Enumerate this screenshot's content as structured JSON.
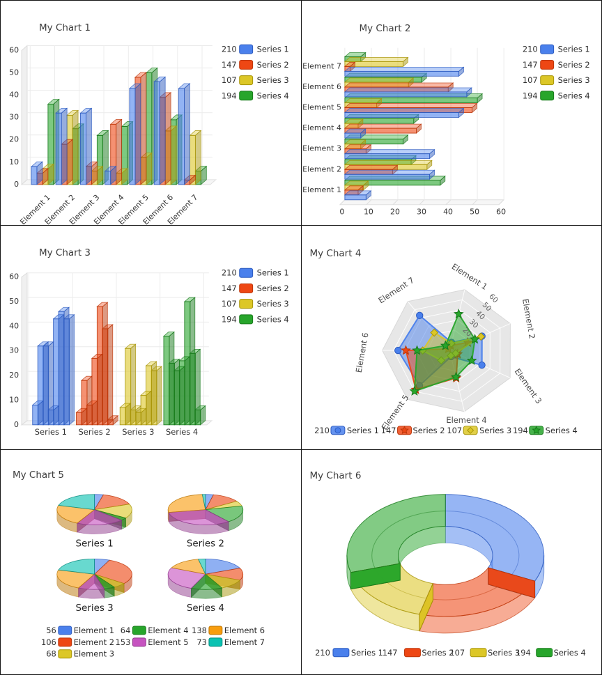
{
  "palette": {
    "series": [
      {
        "name": "Series 1",
        "color": "#4A80EC",
        "dark": "#2D5BBF"
      },
      {
        "name": "Series 2",
        "color": "#EE4714",
        "dark": "#BC3508"
      },
      {
        "name": "Series 3",
        "color": "#DCC727",
        "dark": "#A7950A"
      },
      {
        "name": "Series 4",
        "color": "#27A52B",
        "dark": "#187A1B"
      }
    ]
  },
  "chart_data": [
    {
      "type": "bar",
      "variant": "3d-column",
      "title": "My Chart 1",
      "categories": [
        "Element 1",
        "Element 2",
        "Element 3",
        "Element 4",
        "Element 5",
        "Element 6",
        "Element 7"
      ],
      "series": [
        {
          "name": "Series 1",
          "legend_value": 210,
          "color": "#4A80EC",
          "dark": "#2D5BBF",
          "values": [
            8,
            32,
            32,
            6,
            43,
            46,
            43
          ]
        },
        {
          "name": "Series 2",
          "legend_value": 147,
          "color": "#EE4714",
          "dark": "#BC3508",
          "values": [
            5,
            18,
            8,
            27,
            48,
            39,
            2
          ]
        },
        {
          "name": "Series 3",
          "legend_value": 107,
          "color": "#DCC727",
          "dark": "#A7950A",
          "values": [
            7,
            31,
            6,
            5,
            12,
            24,
            22
          ]
        },
        {
          "name": "Series 4",
          "legend_value": 194,
          "color": "#27A52B",
          "dark": "#187A1B",
          "values": [
            36,
            25,
            22,
            26,
            50,
            29,
            6
          ]
        }
      ],
      "ylim": [
        0,
        60
      ],
      "yticks": [
        0,
        10,
        20,
        30,
        40,
        50,
        60
      ],
      "legend_position": "right"
    },
    {
      "type": "bar",
      "variant": "3d-horizontal-bar",
      "title": "My Chart 2",
      "categories": [
        "Element 1",
        "Element 2",
        "Element 3",
        "Element 4",
        "Element 5",
        "Element 6",
        "Element 7"
      ],
      "series": [
        {
          "name": "Series 1",
          "legend_value": 210,
          "color": "#4A80EC",
          "dark": "#2D5BBF",
          "values": [
            8,
            32,
            32,
            6,
            43,
            46,
            43
          ]
        },
        {
          "name": "Series 2",
          "legend_value": 147,
          "color": "#EE4714",
          "dark": "#BC3508",
          "values": [
            5,
            18,
            8,
            27,
            48,
            39,
            2
          ]
        },
        {
          "name": "Series 3",
          "legend_value": 107,
          "color": "#DCC727",
          "dark": "#A7950A",
          "values": [
            7,
            31,
            6,
            5,
            12,
            24,
            22
          ]
        },
        {
          "name": "Series 4",
          "legend_value": 194,
          "color": "#27A52B",
          "dark": "#187A1B",
          "values": [
            36,
            25,
            22,
            26,
            50,
            29,
            6
          ]
        }
      ],
      "xlim": [
        0,
        60
      ],
      "xticks": [
        0,
        10,
        20,
        30,
        40,
        50,
        60
      ],
      "legend_position": "right"
    },
    {
      "type": "bar",
      "variant": "3d-column-grouped-by-series",
      "title": "My Chart 3",
      "categories": [
        "Series 1",
        "Series 2",
        "Series 3",
        "Series 4"
      ],
      "series": [
        {
          "name": "Series 1",
          "legend_value": 210,
          "color": "#4A80EC",
          "dark": "#2D5BBF",
          "values": [
            8,
            32,
            32,
            6,
            43,
            46,
            43
          ]
        },
        {
          "name": "Series 2",
          "legend_value": 147,
          "color": "#EE4714",
          "dark": "#BC3508",
          "values": [
            5,
            18,
            8,
            27,
            48,
            39,
            2
          ]
        },
        {
          "name": "Series 3",
          "legend_value": 107,
          "color": "#DCC727",
          "dark": "#A7950A",
          "values": [
            7,
            31,
            6,
            5,
            12,
            24,
            22
          ]
        },
        {
          "name": "Series 4",
          "legend_value": 194,
          "color": "#27A52B",
          "dark": "#187A1B",
          "values": [
            36,
            25,
            22,
            26,
            50,
            29,
            6
          ]
        }
      ],
      "ylim": [
        0,
        60
      ],
      "yticks": [
        0,
        10,
        20,
        30,
        40,
        50,
        60
      ],
      "legend_position": "right"
    },
    {
      "type": "radar",
      "variant": "3d-radar",
      "title": "My Chart 4",
      "axes": [
        "Element 1",
        "Element 2",
        "Element 3",
        "Element 4",
        "Element 5",
        "Element 6",
        "Element 7"
      ],
      "rmax": 60,
      "rticks": [
        20,
        30,
        40,
        50,
        60
      ],
      "series": [
        {
          "name": "Series 1",
          "legend_value": 210,
          "marker": "circle",
          "color": "#4A80EC",
          "dark": "#2D5BBF",
          "values": [
            8,
            32,
            32,
            6,
            43,
            46,
            43
          ]
        },
        {
          "name": "Series 2",
          "legend_value": 147,
          "marker": "star",
          "color": "#EE4714",
          "dark": "#BC3508",
          "values": [
            5,
            18,
            8,
            27,
            48,
            39,
            2
          ]
        },
        {
          "name": "Series 3",
          "legend_value": 107,
          "marker": "diamond",
          "color": "#DCC727",
          "dark": "#A7950A",
          "values": [
            7,
            31,
            6,
            5,
            12,
            24,
            22
          ]
        },
        {
          "name": "Series 4",
          "legend_value": 194,
          "marker": "star",
          "color": "#27A52B",
          "dark": "#187A1B",
          "values": [
            36,
            25,
            22,
            26,
            50,
            29,
            6
          ]
        }
      ],
      "legend_position": "bottom"
    },
    {
      "type": "pie",
      "variant": "3d-pie-multiples",
      "title": "My Chart 5",
      "slice_labels": [
        "Element 1",
        "Element 2",
        "Element 3",
        "Element 4",
        "Element 5",
        "Element 6",
        "Element 7"
      ],
      "slice_colors": [
        "#4A80EC",
        "#EE4714",
        "#DCC727",
        "#27A52B",
        "#C653C0",
        "#F89D0E",
        "#0BC2B2"
      ],
      "slice_darks": [
        "#2D5BBF",
        "#BC3508",
        "#A7950A",
        "#187A1B",
        "#8F3A8B",
        "#BA7403",
        "#078A7E"
      ],
      "legend": [
        {
          "value": 56,
          "label": "Element 1"
        },
        {
          "value": 106,
          "label": "Element 2"
        },
        {
          "value": 68,
          "label": "Element 3"
        },
        {
          "value": 64,
          "label": "Element 4"
        },
        {
          "value": 153,
          "label": "Element 5"
        },
        {
          "value": 138,
          "label": "Element 6"
        },
        {
          "value": 73,
          "label": "Element 7"
        }
      ],
      "pies": [
        {
          "label": "Series 1",
          "values": [
            8,
            32,
            32,
            6,
            43,
            46,
            43
          ]
        },
        {
          "label": "Series 2",
          "values": [
            5,
            18,
            8,
            27,
            48,
            39,
            2
          ]
        },
        {
          "label": "Series 3",
          "values": [
            7,
            31,
            6,
            5,
            12,
            24,
            22
          ]
        },
        {
          "label": "Series 4",
          "values": [
            36,
            25,
            22,
            26,
            50,
            29,
            6
          ]
        }
      ]
    },
    {
      "type": "donut",
      "variant": "3d-donut",
      "title": "My Chart 6",
      "slices": [
        {
          "label": "Series 1",
          "value": 210,
          "color": "#4A80EC",
          "dark": "#2D5BBF"
        },
        {
          "label": "Series 2",
          "value": 147,
          "color": "#EE4714",
          "dark": "#BC3508"
        },
        {
          "label": "Series 3",
          "value": 107,
          "color": "#DCC727",
          "dark": "#A7950A"
        },
        {
          "label": "Series 4",
          "value": 194,
          "color": "#27A52B",
          "dark": "#187A1B"
        }
      ],
      "legend_position": "bottom"
    }
  ]
}
